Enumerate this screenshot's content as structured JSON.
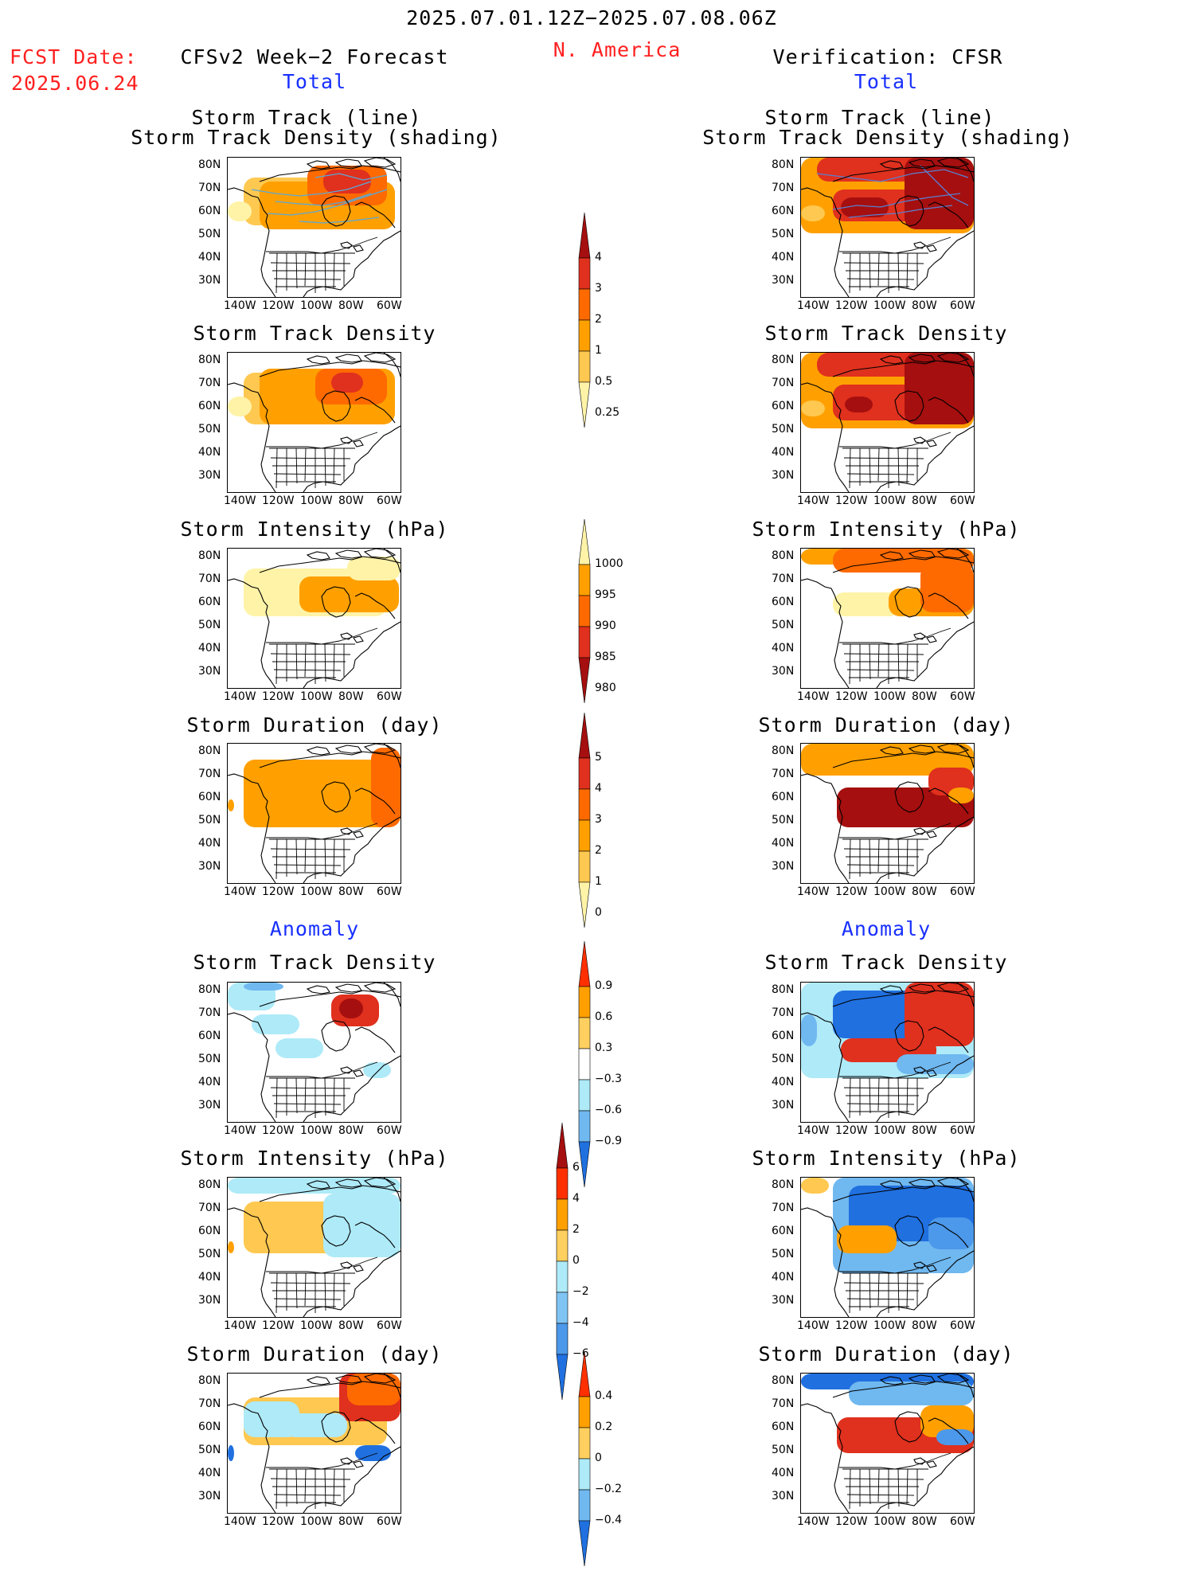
{
  "header": {
    "date_range": "2025.07.01.12Z−2025.07.08.06Z",
    "region": "N. America",
    "fcst_label": "FCST Date:",
    "fcst_date": "2025.06.24",
    "left_title": "CFSv2 Week−2 Forecast",
    "right_title": "Verification: CFSR",
    "total_label": "Total",
    "anomaly_label": "Anomaly"
  },
  "panel_titles": {
    "track_line": "Storm Track (line)",
    "track_shading": "Storm Track Density (shading)",
    "density": "Storm Track Density",
    "intensity": "Storm Intensity (hPa)",
    "duration": "Storm Duration (day)"
  },
  "axes": {
    "lat_labels": [
      "80N",
      "70N",
      "60N",
      "50N",
      "40N",
      "30N"
    ],
    "lon_labels": [
      "140W",
      "120W",
      "100W",
      "80W",
      "60W"
    ]
  },
  "colorbars": {
    "density": {
      "labels": [
        "4",
        "3",
        "2",
        "1",
        "0.5",
        "0.25"
      ],
      "colors": [
        "#a50f0f",
        "#e0301e",
        "#ff6a00",
        "#ffa000",
        "#ffc850",
        "#fff3a8"
      ]
    },
    "intensity": {
      "labels": [
        "1000",
        "995",
        "990",
        "985",
        "980"
      ],
      "colors": [
        "#fff3a8",
        "#ffa000",
        "#ff6a00",
        "#e0301e",
        "#a50f0f"
      ]
    },
    "duration": {
      "labels": [
        "5",
        "4",
        "3",
        "2",
        "1",
        "0"
      ],
      "colors": [
        "#a50f0f",
        "#e0301e",
        "#ff6a00",
        "#ffa000",
        "#ffc850",
        "#fff3a8"
      ]
    },
    "anom_density": {
      "labels": [
        "0.9",
        "0.6",
        "0.3",
        "−0.3",
        "−0.6",
        "−0.9"
      ],
      "colors": [
        "#ff3000",
        "#ffa000",
        "#ffd060",
        "#ffffff",
        "#aeeaf8",
        "#70b8f0",
        "#2070e0"
      ]
    },
    "anom_intensity": {
      "labels": [
        "6",
        "4",
        "2",
        "0",
        "−2",
        "−4",
        "−6"
      ],
      "colors": [
        "#a50f0f",
        "#ff3000",
        "#ffa000",
        "#ffd060",
        "#aeeaf8",
        "#80c4f4",
        "#4c98ea",
        "#2070e0"
      ]
    },
    "anom_duration": {
      "labels": [
        "0.4",
        "0.2",
        "0",
        "−0.2",
        "−0.4"
      ],
      "colors": [
        "#ff3000",
        "#ffa000",
        "#ffd060",
        "#aeeaf8",
        "#70b8f0",
        "#2070e0"
      ]
    }
  }
}
